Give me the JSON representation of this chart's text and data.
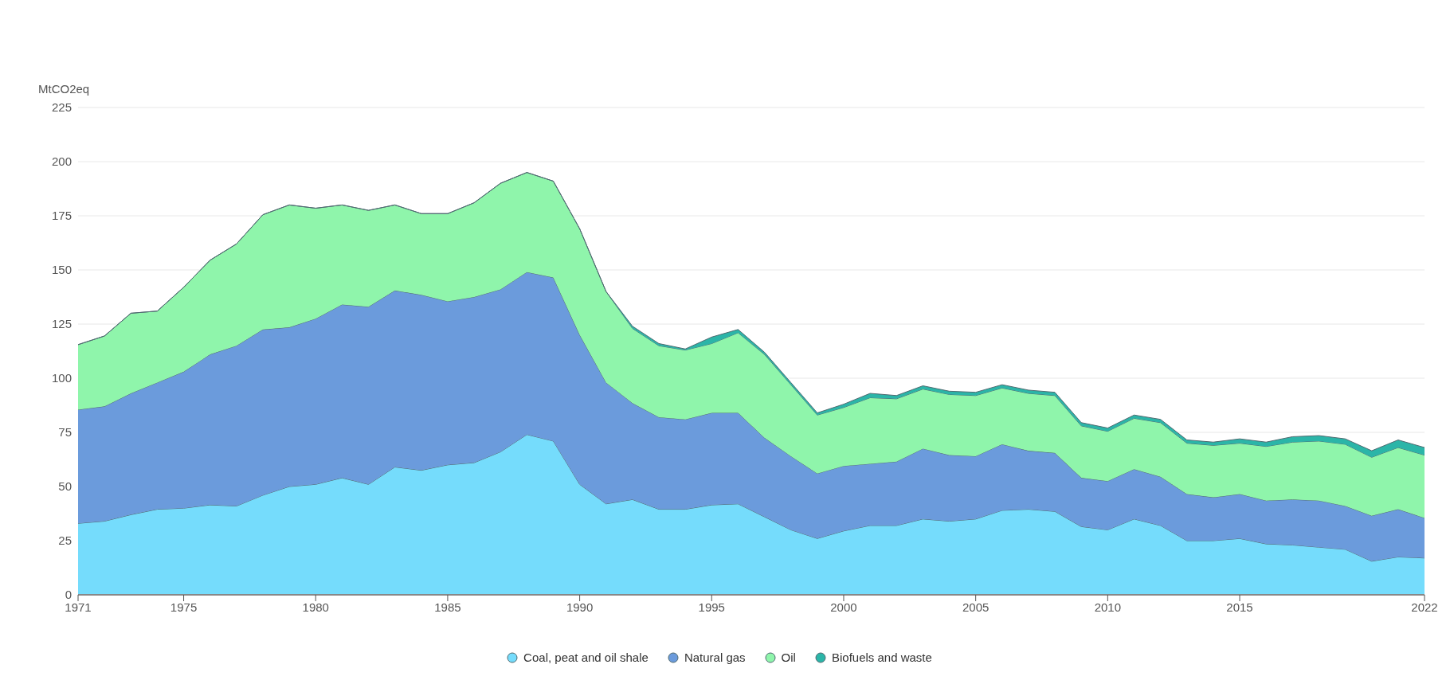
{
  "chart_data": {
    "type": "area",
    "stacked": true,
    "ylabel": "MtCO2eq",
    "x": [
      1971,
      1972,
      1973,
      1974,
      1975,
      1976,
      1977,
      1978,
      1979,
      1980,
      1981,
      1982,
      1983,
      1984,
      1985,
      1986,
      1987,
      1988,
      1989,
      1990,
      1991,
      1992,
      1993,
      1994,
      1995,
      1996,
      1997,
      1998,
      1999,
      2000,
      2001,
      2002,
      2003,
      2004,
      2005,
      2006,
      2007,
      2008,
      2009,
      2010,
      2011,
      2012,
      2013,
      2014,
      2015,
      2016,
      2017,
      2018,
      2019,
      2020,
      2021,
      2022
    ],
    "xlim": [
      1971,
      2022
    ],
    "xticks": [
      1971,
      1975,
      1980,
      1985,
      1990,
      1995,
      2000,
      2005,
      2010,
      2015,
      2022
    ],
    "ylim": [
      0,
      225
    ],
    "yticks": [
      0,
      25,
      50,
      75,
      100,
      125,
      150,
      175,
      200,
      225
    ],
    "grid": "y",
    "legend": "bottom",
    "series": [
      {
        "name": "Coal, peat and oil shale",
        "color": "#75dcfc",
        "values": [
          33,
          34,
          37,
          39.5,
          40,
          41.5,
          41,
          46,
          50,
          51,
          54,
          51,
          59,
          57.5,
          60,
          61,
          66,
          74,
          71,
          51,
          42,
          44,
          39.5,
          39.5,
          41.5,
          42,
          36,
          30,
          26,
          29.5,
          32,
          32,
          35,
          34,
          35,
          39,
          39.5,
          38.5,
          31.5,
          30,
          35,
          32,
          25,
          25,
          26,
          23.5,
          23,
          22,
          21,
          15.5,
          17.5,
          17
        ]
      },
      {
        "name": "Natural gas",
        "color": "#6b9bdc",
        "values": [
          52.5,
          53,
          56,
          58.5,
          63,
          69.5,
          74,
          76.5,
          73.5,
          76.5,
          80,
          82,
          81.5,
          81,
          75.5,
          76.5,
          75,
          75,
          75.5,
          69,
          56,
          44.5,
          42.5,
          41.5,
          42.5,
          42,
          36.5,
          34,
          30,
          30,
          28.5,
          29.5,
          32.5,
          30.5,
          29,
          30.5,
          27,
          27,
          22.5,
          22.5,
          23,
          22.5,
          21.5,
          20,
          20.5,
          20,
          21,
          21.5,
          20,
          21,
          22,
          18.5
        ]
      },
      {
        "name": "Oil",
        "color": "#8ff5ab",
        "values": [
          30,
          32.5,
          37,
          33,
          39,
          43.5,
          47,
          53,
          56.5,
          51,
          46,
          44.5,
          39.5,
          37.5,
          40.5,
          43.5,
          49,
          46,
          44.5,
          49,
          42,
          34.5,
          33,
          32,
          32,
          37,
          38.5,
          33,
          27,
          27,
          30.5,
          29,
          27.5,
          28,
          28,
          26,
          26.5,
          26.5,
          24,
          23,
          23.5,
          25,
          23.5,
          24,
          23.5,
          25,
          26.5,
          27.5,
          28.5,
          27,
          28.5,
          29
        ]
      },
      {
        "name": "Biofuels and waste",
        "color": "#2bb5a8",
        "values": [
          0,
          0,
          0,
          0,
          0,
          0,
          0,
          0,
          0,
          0,
          0,
          0,
          0,
          0,
          0,
          0,
          0,
          0,
          0,
          0,
          0,
          1,
          1,
          0.5,
          3,
          1.5,
          1,
          1,
          1,
          1.5,
          2,
          1.5,
          1.5,
          1.5,
          1.5,
          1.5,
          1.5,
          1.5,
          1.5,
          1.5,
          1.5,
          1.5,
          1.5,
          1.5,
          2,
          2,
          2.5,
          2.5,
          2.5,
          3,
          3.5,
          3.5
        ]
      }
    ]
  }
}
